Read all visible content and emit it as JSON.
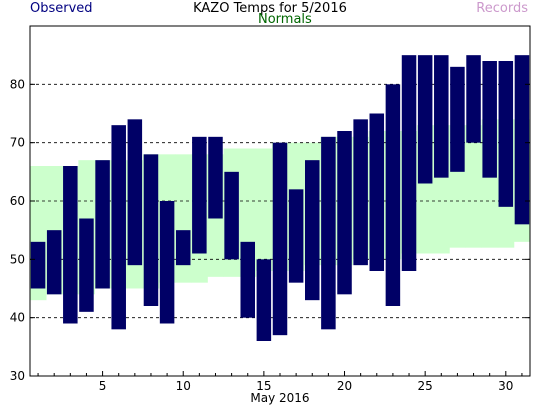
{
  "chart_data": {
    "type": "bar",
    "title": "KAZO Temps for 5/2016",
    "legend": {
      "observed": "Observed",
      "normals": "Normals",
      "records": "Records"
    },
    "xlabel": "May 2016",
    "ylabel": "",
    "x_ticks": [
      5,
      10,
      15,
      20,
      25,
      30
    ],
    "y_ticks": [
      30,
      40,
      50,
      60,
      70,
      80
    ],
    "xlim": [
      0.5,
      31.5
    ],
    "ylim": [
      30,
      90
    ],
    "grid": "horizontal dashed",
    "days": [
      1,
      2,
      3,
      4,
      5,
      6,
      7,
      8,
      9,
      10,
      11,
      12,
      13,
      14,
      15,
      16,
      17,
      18,
      19,
      20,
      21,
      22,
      23,
      24,
      25,
      26,
      27,
      28,
      29,
      30,
      31
    ],
    "observed_high": [
      53,
      55,
      66,
      57,
      67,
      73,
      74,
      68,
      60,
      55,
      71,
      71,
      65,
      53,
      50,
      70,
      62,
      67,
      71,
      72,
      74,
      75,
      80,
      85,
      85,
      85,
      83,
      85,
      84,
      84,
      85
    ],
    "observed_low": [
      45,
      44,
      39,
      41,
      45,
      38,
      49,
      42,
      39,
      49,
      51,
      57,
      50,
      40,
      36,
      37,
      46,
      43,
      38,
      44,
      49,
      48,
      42,
      48,
      63,
      64,
      65,
      70,
      64,
      59,
      56
    ],
    "normal_high": [
      66,
      66,
      66,
      67,
      67,
      67,
      67,
      68,
      68,
      68,
      68,
      68,
      69,
      69,
      69,
      70,
      70,
      70,
      71,
      71,
      71,
      72,
      72,
      72,
      73,
      73,
      73,
      73,
      74,
      74,
      74
    ],
    "normal_low": [
      43,
      44,
      44,
      44,
      45,
      45,
      45,
      45,
      46,
      46,
      46,
      47,
      47,
      47,
      48,
      48,
      48,
      49,
      49,
      49,
      50,
      50,
      50,
      51,
      51,
      51,
      52,
      52,
      52,
      52,
      53
    ],
    "colors": {
      "observed": "#000066",
      "normals": "#ccffcc",
      "observed_label": "#000080",
      "normals_label": "#006600",
      "records_label": "#cc99cc",
      "grid": "#000000"
    }
  }
}
